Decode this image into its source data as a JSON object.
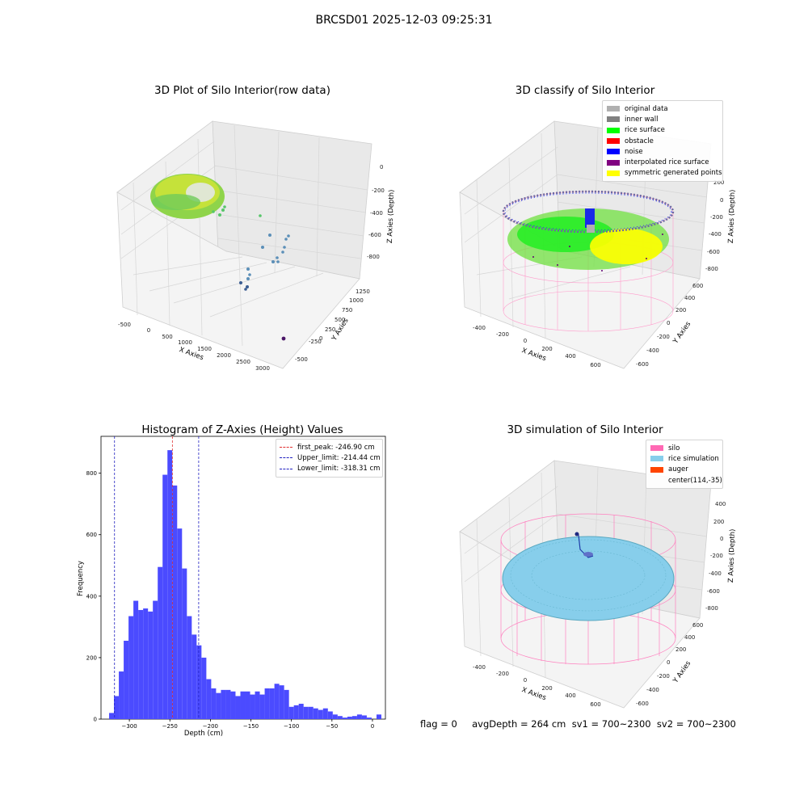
{
  "figure": {
    "suptitle": "BRCSD01 2025-12-03 09:25:31",
    "footer": "flag = 0     avgDepth = 264 cm  sv1 = 700~2300  sv2 = 700~2300"
  },
  "colors": {
    "hist_bar": "#4b4bff",
    "first_peak": "#e03030",
    "limits": "#2020c0",
    "original": "#b0b0b0",
    "inner_wall": "#808080",
    "rice_surface": "#00ff00",
    "obstacle": "#ff0000",
    "noise": "#0000ff",
    "interpolated": "#800080",
    "symmetric": "#ffff00",
    "silo": "#ff69b4",
    "rice_sim": "#87ceeb",
    "auger": "#ff4500"
  },
  "chart_data": [
    {
      "type": "scatter",
      "projection": "3d",
      "title": "3D Plot of Silo Interior(row data)",
      "xlabel": "X Axies",
      "ylabel": "Y Axies",
      "zlabel": "Z Axies (Depth)",
      "x_ticks": [
        "-500",
        "0",
        "500",
        "1000",
        "1500",
        "2000",
        "2500",
        "3000"
      ],
      "y_ticks": [
        "-500",
        "-250",
        "0",
        "250",
        "500",
        "750",
        "1000",
        "1250"
      ],
      "z_ticks": [
        "-800",
        "-600",
        "-400",
        "-200",
        "0"
      ],
      "colormap": "viridis",
      "grid": true
    },
    {
      "type": "scatter",
      "projection": "3d",
      "title": "3D classify of Silo Interior",
      "xlabel": "X Axies",
      "ylabel": "Y Axies",
      "zlabel": "Z Axies (Depth)",
      "x_ticks": [
        "-400",
        "-200",
        "0",
        "200",
        "400",
        "600"
      ],
      "y_ticks": [
        "-600",
        "-400",
        "-200",
        "0",
        "200",
        "400",
        "600"
      ],
      "z_ticks": [
        "-800",
        "-600",
        "-400",
        "-200",
        "0",
        "200"
      ],
      "legend": [
        "original data",
        "inner wall",
        "rice surface",
        "obstacle",
        "noise",
        "interpolated rice surface",
        "symmetric generated points"
      ],
      "legend_position": "upper right",
      "grid": true
    },
    {
      "type": "bar",
      "title": "Histogram of Z-Axies (Height) Values",
      "xlabel": "Depth (cm)",
      "ylabel": "Frequency",
      "xlim": [
        -335,
        16
      ],
      "ylim": [
        0,
        920
      ],
      "x_ticks": [
        -300,
        -250,
        -200,
        -150,
        -100,
        -50,
        0
      ],
      "x_tick_labels": [
        "−300",
        "−250",
        "−200",
        "−150",
        "−100",
        "−50",
        "0"
      ],
      "y_ticks": [
        0,
        200,
        400,
        600,
        800
      ],
      "bin_start": -325,
      "bin_width": 6,
      "values": [
        20,
        75,
        155,
        255,
        335,
        385,
        355,
        360,
        350,
        385,
        495,
        795,
        875,
        760,
        620,
        490,
        335,
        275,
        240,
        200,
        130,
        100,
        85,
        95,
        95,
        90,
        75,
        90,
        90,
        80,
        90,
        80,
        100,
        100,
        115,
        110,
        95,
        40,
        45,
        50,
        40,
        40,
        35,
        30,
        35,
        25,
        15,
        10,
        5,
        8,
        10,
        15,
        12,
        5,
        0,
        15
      ],
      "vlines": [
        {
          "x": -246.9,
          "label": "first_peak: -246.90 cm",
          "color": "#e03030"
        },
        {
          "x": -214.44,
          "label": "Upper_limit: -214.44 cm",
          "color": "#2020c0"
        },
        {
          "x": -318.31,
          "label": "Lower_limit: -318.31 cm",
          "color": "#2020c0"
        }
      ],
      "legend_position": "upper right"
    },
    {
      "type": "surface",
      "projection": "3d",
      "title": "3D simulation of Silo Interior",
      "xlabel": "X Axies",
      "ylabel": "Y Axies",
      "zlabel": "Z Axies (Depth)",
      "x_ticks": [
        "-400",
        "-200",
        "0",
        "200",
        "400",
        "600"
      ],
      "y_ticks": [
        "-600",
        "-400",
        "-200",
        "0",
        "200",
        "400",
        "600"
      ],
      "z_ticks": [
        "-800",
        "-600",
        "-400",
        "-200",
        "0",
        "200",
        "400"
      ],
      "legend": [
        "silo",
        "rice simulation",
        "auger",
        "center(114,-35)"
      ],
      "legend_position": "upper right",
      "grid": true
    }
  ]
}
